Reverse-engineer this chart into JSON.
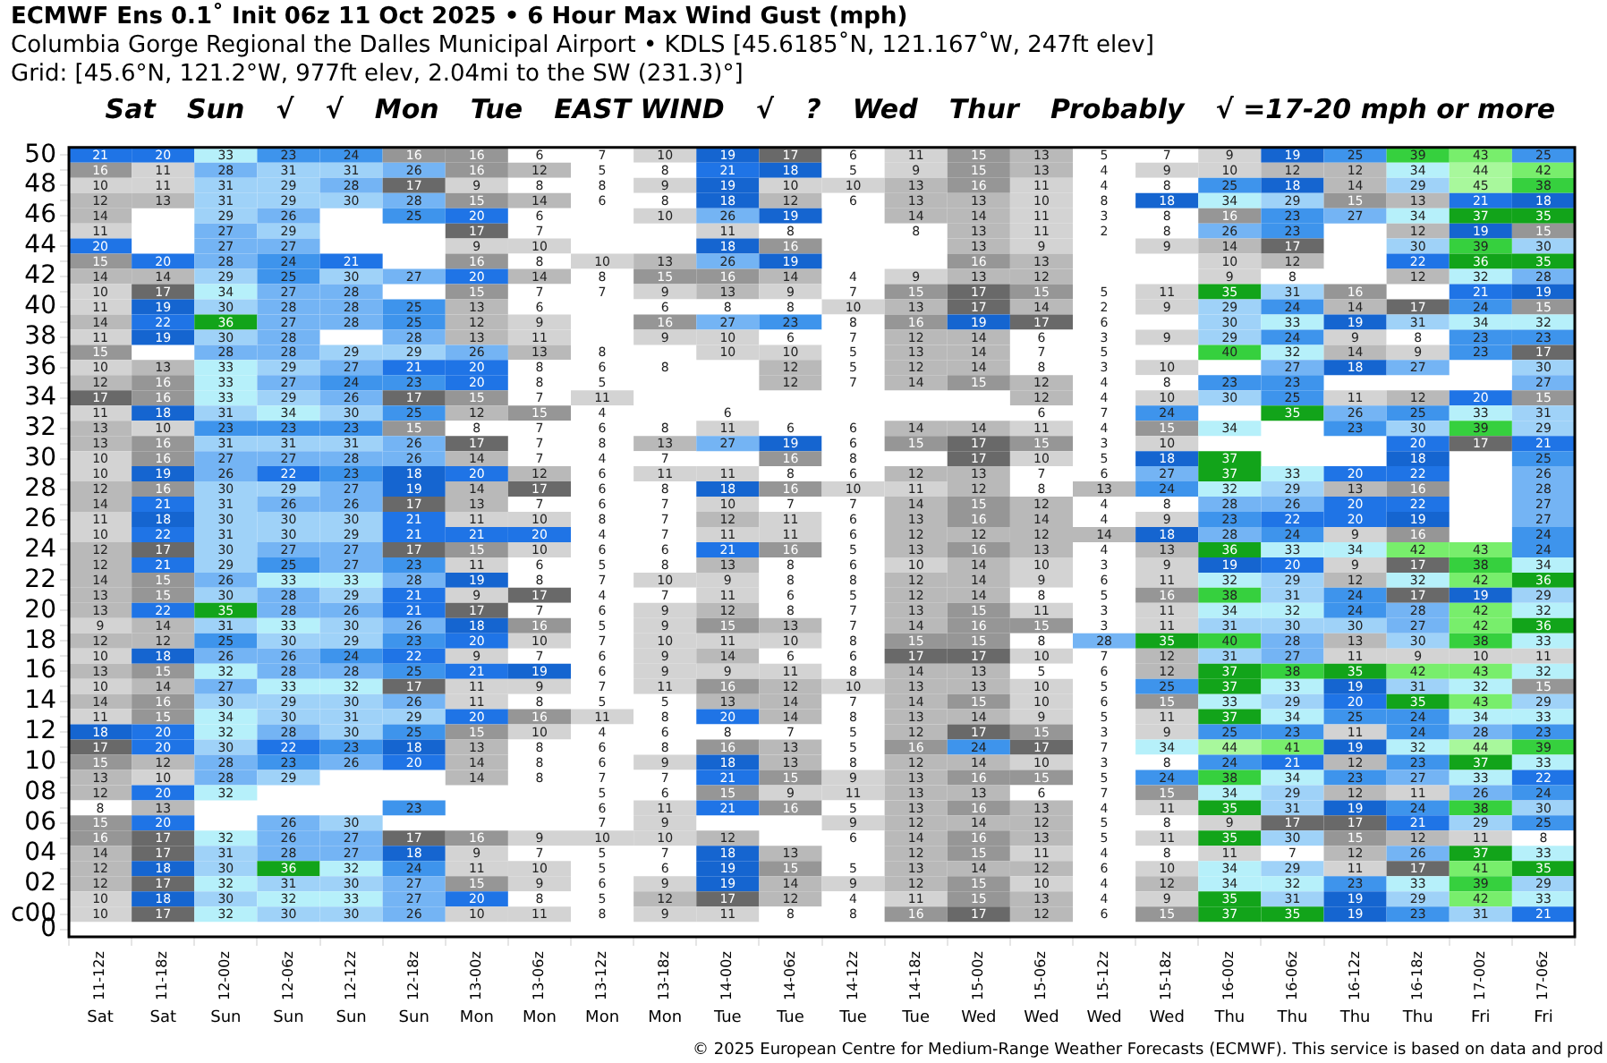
{
  "chart_data": {
    "type": "heatmap",
    "title": "ECMWF Ens 0.1˚ Init 06z 11 Oct 2025 • 6 Hour Max Wind Gust (mph)",
    "subtitle": "Columbia Gorge Regional the Dalles Municipal Airport • KDLS [45.6185˚N, 121.167˚W, 247ft elev]\nGrid: [45.6°N, 121.2°W, 977ft elev, 2.04mi to the SW (231.3)°]",
    "categories": [
      "11-12z",
      "11-18z",
      "12-00z",
      "12-06z",
      "12-12z",
      "12-18z",
      "13-00z",
      "13-06z",
      "13-12z",
      "13-18z",
      "14-00z",
      "14-06z",
      "14-12z",
      "14-18z",
      "15-00z",
      "15-06z",
      "15-12z",
      "15-18z",
      "16-00z",
      "16-06z",
      "16-12z",
      "16-18z",
      "17-00z",
      "17-06z"
    ],
    "y_categories": [
      "50",
      null,
      "48",
      null,
      "46",
      null,
      "44",
      null,
      "42",
      null,
      "40",
      null,
      "38",
      null,
      "36",
      null,
      "34",
      null,
      "32",
      null,
      "30",
      null,
      "28",
      null,
      "26",
      null,
      "24",
      null,
      "22",
      null,
      "20",
      null,
      "18",
      null,
      "16",
      null,
      "14",
      null,
      "12",
      null,
      "10",
      null,
      "08",
      null,
      "06",
      null,
      "04",
      null,
      "02",
      null,
      "c00",
      "0"
    ],
    "data_labels": true,
    "cells": [
      [
        21,
        20,
        33,
        23,
        24,
        16,
        16,
        6,
        7,
        10,
        19,
        17,
        6,
        11,
        15,
        13,
        5,
        7,
        9,
        19,
        25,
        39,
        43,
        25
      ],
      [
        16,
        11,
        28,
        31,
        31,
        26,
        16,
        12,
        5,
        8,
        21,
        18,
        5,
        9,
        15,
        13,
        4,
        9,
        10,
        12,
        12,
        34,
        44,
        42
      ],
      [
        10,
        11,
        31,
        29,
        28,
        17,
        9,
        8,
        8,
        9,
        19,
        10,
        10,
        13,
        16,
        11,
        4,
        8,
        25,
        18,
        14,
        29,
        45,
        38
      ],
      [
        12,
        13,
        31,
        29,
        30,
        28,
        15,
        14,
        6,
        8,
        18,
        12,
        6,
        13,
        13,
        10,
        8,
        18,
        34,
        29,
        15,
        13,
        21,
        18
      ],
      [
        14,
        null,
        29,
        26,
        null,
        25,
        20,
        6,
        null,
        10,
        26,
        19,
        null,
        14,
        14,
        11,
        3,
        8,
        16,
        23,
        27,
        34,
        37,
        35
      ],
      [
        11,
        null,
        27,
        29,
        null,
        null,
        17,
        7,
        null,
        null,
        11,
        8,
        null,
        8,
        13,
        11,
        2,
        8,
        26,
        23,
        null,
        12,
        19,
        15
      ],
      [
        20,
        null,
        27,
        27,
        null,
        null,
        9,
        10,
        null,
        null,
        18,
        16,
        null,
        null,
        13,
        9,
        null,
        9,
        14,
        17,
        null,
        30,
        39,
        30
      ],
      [
        15,
        20,
        28,
        24,
        21,
        null,
        16,
        8,
        10,
        13,
        26,
        19,
        null,
        null,
        16,
        13,
        null,
        null,
        10,
        12,
        null,
        22,
        36,
        35
      ],
      [
        14,
        14,
        29,
        25,
        30,
        27,
        20,
        14,
        8,
        15,
        16,
        14,
        4,
        9,
        13,
        12,
        null,
        null,
        9,
        8,
        null,
        12,
        32,
        28
      ],
      [
        10,
        17,
        34,
        27,
        28,
        null,
        15,
        7,
        7,
        9,
        13,
        9,
        7,
        15,
        17,
        15,
        5,
        11,
        35,
        31,
        16,
        null,
        21,
        19
      ],
      [
        11,
        19,
        30,
        28,
        28,
        25,
        13,
        6,
        null,
        6,
        8,
        8,
        10,
        13,
        17,
        14,
        2,
        9,
        29,
        24,
        14,
        17,
        24,
        15
      ],
      [
        14,
        22,
        36,
        27,
        28,
        25,
        12,
        9,
        null,
        16,
        27,
        23,
        8,
        16,
        19,
        17,
        6,
        null,
        30,
        33,
        19,
        31,
        34,
        32
      ],
      [
        11,
        19,
        30,
        28,
        null,
        28,
        13,
        11,
        null,
        9,
        10,
        6,
        7,
        12,
        14,
        6,
        3,
        9,
        29,
        24,
        9,
        8,
        23,
        23
      ],
      [
        15,
        null,
        28,
        28,
        29,
        29,
        26,
        13,
        8,
        null,
        10,
        10,
        5,
        13,
        14,
        7,
        5,
        null,
        40,
        32,
        14,
        9,
        23,
        17
      ],
      [
        10,
        13,
        33,
        29,
        27,
        21,
        20,
        8,
        6,
        8,
        null,
        12,
        5,
        12,
        14,
        8,
        3,
        10,
        null,
        27,
        18,
        27,
        null,
        30
      ],
      [
        12,
        16,
        33,
        27,
        24,
        23,
        20,
        8,
        5,
        null,
        null,
        12,
        7,
        14,
        15,
        12,
        4,
        8,
        23,
        23,
        null,
        null,
        null,
        27
      ],
      [
        17,
        16,
        33,
        29,
        26,
        17,
        15,
        7,
        11,
        null,
        null,
        null,
        null,
        null,
        null,
        12,
        4,
        10,
        30,
        25,
        11,
        12,
        20,
        15
      ],
      [
        11,
        18,
        31,
        34,
        30,
        25,
        12,
        15,
        4,
        null,
        6,
        null,
        null,
        null,
        null,
        6,
        7,
        24,
        null,
        35,
        26,
        25,
        33,
        31
      ],
      [
        13,
        10,
        23,
        23,
        23,
        15,
        8,
        7,
        6,
        8,
        11,
        6,
        6,
        14,
        14,
        11,
        4,
        15,
        34,
        null,
        23,
        30,
        39,
        29
      ],
      [
        13,
        16,
        31,
        31,
        31,
        26,
        17,
        7,
        8,
        13,
        27,
        19,
        6,
        15,
        17,
        15,
        3,
        10,
        null,
        null,
        null,
        20,
        17,
        21
      ],
      [
        10,
        16,
        27,
        27,
        28,
        26,
        14,
        7,
        4,
        7,
        null,
        16,
        8,
        null,
        17,
        10,
        5,
        18,
        37,
        null,
        null,
        18,
        null,
        25
      ],
      [
        10,
        19,
        26,
        22,
        23,
        18,
        20,
        12,
        6,
        11,
        11,
        8,
        6,
        12,
        13,
        7,
        6,
        27,
        37,
        33,
        20,
        22,
        null,
        26
      ],
      [
        12,
        16,
        30,
        29,
        27,
        19,
        14,
        17,
        6,
        8,
        18,
        16,
        10,
        11,
        12,
        8,
        13,
        24,
        32,
        29,
        13,
        16,
        null,
        28
      ],
      [
        14,
        21,
        31,
        26,
        26,
        17,
        13,
        7,
        6,
        7,
        10,
        7,
        7,
        14,
        15,
        12,
        4,
        8,
        28,
        26,
        20,
        22,
        null,
        27
      ],
      [
        11,
        18,
        30,
        30,
        30,
        21,
        11,
        10,
        8,
        7,
        12,
        11,
        6,
        13,
        16,
        14,
        4,
        9,
        23,
        22,
        20,
        19,
        null,
        27
      ],
      [
        10,
        22,
        31,
        30,
        29,
        21,
        21,
        20,
        4,
        7,
        11,
        11,
        6,
        12,
        12,
        12,
        14,
        18,
        28,
        24,
        9,
        16,
        null,
        24
      ],
      [
        12,
        17,
        30,
        27,
        27,
        17,
        15,
        10,
        6,
        6,
        21,
        16,
        5,
        13,
        16,
        13,
        4,
        13,
        36,
        33,
        34,
        42,
        43,
        24
      ],
      [
        12,
        21,
        29,
        25,
        27,
        23,
        11,
        6,
        5,
        8,
        13,
        8,
        6,
        10,
        14,
        10,
        3,
        9,
        19,
        20,
        9,
        17,
        38,
        34
      ],
      [
        14,
        15,
        26,
        33,
        33,
        28,
        19,
        8,
        7,
        10,
        9,
        8,
        8,
        12,
        14,
        9,
        6,
        11,
        32,
        29,
        12,
        32,
        42,
        36
      ],
      [
        13,
        15,
        30,
        28,
        29,
        21,
        9,
        17,
        4,
        7,
        11,
        6,
        5,
        12,
        14,
        8,
        5,
        16,
        38,
        31,
        24,
        17,
        19,
        29
      ],
      [
        13,
        22,
        35,
        28,
        26,
        21,
        17,
        7,
        6,
        9,
        12,
        8,
        7,
        13,
        15,
        11,
        3,
        11,
        34,
        32,
        24,
        28,
        42,
        32
      ],
      [
        9,
        14,
        31,
        33,
        30,
        26,
        18,
        16,
        5,
        9,
        15,
        13,
        7,
        14,
        16,
        15,
        3,
        11,
        31,
        30,
        30,
        27,
        42,
        36
      ],
      [
        12,
        12,
        25,
        30,
        29,
        23,
        20,
        10,
        7,
        10,
        11,
        10,
        8,
        15,
        15,
        8,
        28,
        35,
        40,
        28,
        13,
        30,
        38,
        33
      ],
      [
        10,
        18,
        26,
        26,
        24,
        22,
        9,
        7,
        6,
        9,
        14,
        6,
        6,
        17,
        17,
        10,
        7,
        12,
        31,
        27,
        11,
        9,
        10,
        11
      ],
      [
        13,
        15,
        32,
        28,
        28,
        25,
        21,
        19,
        6,
        9,
        9,
        11,
        8,
        14,
        13,
        5,
        6,
        12,
        37,
        38,
        35,
        42,
        43,
        32
      ],
      [
        10,
        14,
        27,
        33,
        32,
        17,
        11,
        9,
        7,
        11,
        16,
        12,
        10,
        13,
        13,
        10,
        5,
        25,
        37,
        33,
        19,
        31,
        32,
        15
      ],
      [
        14,
        16,
        30,
        29,
        30,
        26,
        11,
        8,
        5,
        5,
        13,
        14,
        7,
        14,
        15,
        10,
        6,
        15,
        33,
        29,
        20,
        35,
        43,
        29
      ],
      [
        11,
        15,
        34,
        30,
        31,
        29,
        20,
        16,
        11,
        8,
        20,
        14,
        8,
        13,
        14,
        9,
        5,
        11,
        37,
        34,
        25,
        24,
        34,
        33
      ],
      [
        18,
        20,
        32,
        28,
        30,
        25,
        15,
        10,
        4,
        6,
        8,
        7,
        5,
        12,
        17,
        15,
        3,
        9,
        25,
        23,
        11,
        24,
        28,
        23
      ],
      [
        17,
        20,
        30,
        22,
        23,
        18,
        13,
        8,
        6,
        8,
        16,
        13,
        5,
        16,
        24,
        17,
        7,
        34,
        44,
        41,
        19,
        32,
        44,
        39
      ],
      [
        15,
        12,
        28,
        23,
        26,
        20,
        14,
        8,
        6,
        9,
        18,
        13,
        8,
        12,
        14,
        10,
        3,
        8,
        24,
        21,
        12,
        23,
        37,
        33
      ],
      [
        13,
        10,
        28,
        29,
        null,
        null,
        14,
        8,
        7,
        7,
        21,
        15,
        9,
        13,
        16,
        15,
        5,
        24,
        38,
        34,
        23,
        27,
        33,
        22
      ],
      [
        12,
        20,
        32,
        null,
        null,
        null,
        null,
        null,
        5,
        6,
        15,
        9,
        11,
        13,
        13,
        6,
        7,
        15,
        34,
        29,
        12,
        11,
        26,
        24
      ],
      [
        8,
        13,
        null,
        null,
        null,
        23,
        null,
        null,
        6,
        11,
        21,
        16,
        5,
        13,
        16,
        13,
        4,
        11,
        35,
        31,
        19,
        24,
        38,
        30
      ],
      [
        15,
        20,
        null,
        26,
        30,
        null,
        null,
        null,
        7,
        9,
        null,
        null,
        9,
        12,
        14,
        12,
        5,
        8,
        9,
        17,
        17,
        21,
        29,
        25
      ],
      [
        16,
        17,
        32,
        26,
        27,
        17,
        16,
        9,
        10,
        10,
        12,
        null,
        6,
        14,
        16,
        13,
        5,
        11,
        35,
        30,
        15,
        12,
        11,
        8
      ],
      [
        14,
        17,
        31,
        28,
        27,
        18,
        9,
        7,
        5,
        7,
        18,
        13,
        null,
        12,
        15,
        11,
        4,
        8,
        11,
        7,
        12,
        26,
        37,
        33
      ],
      [
        12,
        18,
        30,
        36,
        32,
        24,
        11,
        10,
        5,
        6,
        19,
        15,
        5,
        13,
        14,
        12,
        6,
        10,
        34,
        29,
        11,
        17,
        41,
        35
      ],
      [
        12,
        17,
        32,
        31,
        30,
        27,
        15,
        9,
        6,
        9,
        19,
        14,
        9,
        12,
        15,
        10,
        4,
        12,
        34,
        32,
        23,
        33,
        39,
        29
      ],
      [
        10,
        18,
        30,
        32,
        33,
        27,
        20,
        8,
        5,
        12,
        17,
        12,
        4,
        11,
        15,
        13,
        4,
        9,
        35,
        31,
        19,
        29,
        42,
        33
      ],
      [
        10,
        17,
        32,
        30,
        30,
        26,
        10,
        11,
        8,
        9,
        11,
        8,
        8,
        16,
        17,
        12,
        6,
        15,
        37,
        35,
        19,
        23,
        31,
        21
      ],
      [
        null,
        null,
        null,
        null,
        null,
        null,
        null,
        null,
        null,
        null,
        null,
        null,
        null,
        null,
        null,
        null,
        null,
        null,
        null,
        null,
        null,
        null,
        null,
        null
      ]
    ],
    "annotations": [
      "Sat",
      "Sat",
      "Sun",
      "Sun",
      "Sun",
      "Sun",
      "Mon",
      "Mon",
      "Mon",
      "Mon",
      "Tue",
      "Tue",
      "Tue",
      "Tue",
      "Wed",
      "Wed",
      "Wed",
      "Wed",
      "Thu",
      "Thu",
      "Thu",
      "Thu",
      "Fri",
      "Fri",
      "Sat",
      "Sun",
      "√",
      "√",
      "Mon",
      "Tue",
      "EAST WIND",
      "√",
      "?",
      "Wed",
      "Thur",
      "Probably",
      "√ =17-20 mph or more",
      "© 2025 European Centre for Medium-Range Weather Forecasts (ECMWF). This service is based on data and prod"
    ]
  }
}
